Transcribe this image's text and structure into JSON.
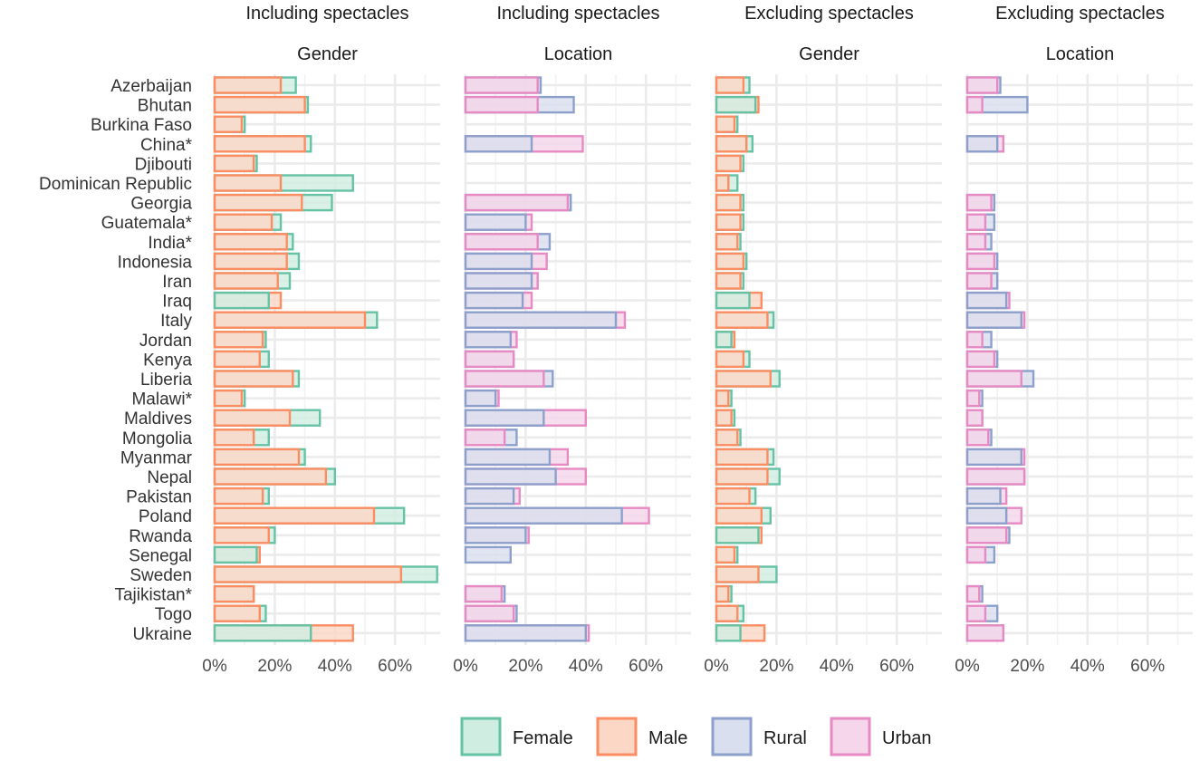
{
  "chart_data": {
    "type": "bar",
    "countries": [
      "Azerbaijan",
      "Bhutan",
      "Burkina Faso",
      "China*",
      "Djibouti",
      "Dominican Republic",
      "Georgia",
      "Guatemala*",
      "India*",
      "Indonesia",
      "Iran",
      "Iraq",
      "Italy",
      "Jordan",
      "Kenya",
      "Liberia",
      "Malawi*",
      "Maldives",
      "Mongolia",
      "Myanmar",
      "Nepal",
      "Pakistan",
      "Poland",
      "Rwanda",
      "Senegal",
      "Sweden",
      "Tajikistan*",
      "Togo",
      "Ukraine"
    ],
    "x_ticks": [
      "0%",
      "20%",
      "40%",
      "60%"
    ],
    "x_tick_values": [
      0,
      20,
      40,
      60
    ],
    "xlim": [
      0,
      75
    ],
    "legend": [
      {
        "key": "Female",
        "label": "Female",
        "stroke": "#66c2a5",
        "fill": "#cfede1"
      },
      {
        "key": "Male",
        "label": "Male",
        "stroke": "#fc8d62",
        "fill": "#fcd7c6"
      },
      {
        "key": "Rural",
        "label": "Rural",
        "stroke": "#8da0cb",
        "fill": "#d9dfee"
      },
      {
        "key": "Urban",
        "label": "Urban",
        "stroke": "#e78ac3",
        "fill": "#f5d6ea"
      }
    ],
    "panels": [
      {
        "title": "Including spectacles",
        "subtitle": "Gender",
        "series": [
          {
            "key": "Female",
            "values": [
              27,
              31,
              10,
              32,
              14,
              46,
              39,
              22,
              26,
              28,
              25,
              18,
              54,
              17,
              18,
              28,
              10,
              35,
              18,
              30,
              40,
              18,
              63,
              20,
              14,
              74,
              13,
              17,
              32
            ]
          },
          {
            "key": "Male",
            "values": [
              22,
              30,
              9,
              30,
              13,
              22,
              29,
              19,
              24,
              24,
              21,
              22,
              50,
              16,
              15,
              26,
              9,
              25,
              13,
              28,
              37,
              16,
              53,
              18,
              15,
              62,
              13,
              15,
              46
            ]
          }
        ]
      },
      {
        "title": "Including spectacles",
        "subtitle": "Location",
        "series": [
          {
            "key": "Rural",
            "values": [
              25,
              36,
              null,
              22,
              null,
              null,
              35,
              20,
              28,
              22,
              22,
              19,
              50,
              15,
              16,
              29,
              10,
              26,
              17,
              28,
              30,
              16,
              52,
              20,
              15,
              null,
              13,
              17,
              40
            ]
          },
          {
            "key": "Urban",
            "values": [
              24,
              24,
              null,
              39,
              null,
              null,
              34,
              22,
              24,
              27,
              24,
              22,
              53,
              17,
              16,
              26,
              11,
              40,
              13,
              34,
              40,
              18,
              61,
              21,
              null,
              null,
              12,
              16,
              41
            ]
          }
        ]
      },
      {
        "title": "Excluding spectacles",
        "subtitle": "Gender",
        "series": [
          {
            "key": "Female",
            "values": [
              11,
              13,
              7,
              12,
              9,
              7,
              9,
              9,
              8,
              10,
              9,
              11,
              19,
              5,
              11,
              21,
              5,
              6,
              8,
              19,
              21,
              13,
              18,
              14,
              7,
              20,
              5,
              9,
              8
            ]
          },
          {
            "key": "Male",
            "values": [
              9,
              14,
              6,
              10,
              8,
              4,
              8,
              8,
              7,
              9,
              8,
              15,
              17,
              6,
              9,
              18,
              4,
              5,
              7,
              17,
              17,
              11,
              15,
              15,
              6,
              14,
              4,
              7,
              16
            ]
          }
        ]
      },
      {
        "title": "Excluding spectacles",
        "subtitle": "Location",
        "series": [
          {
            "key": "Rural",
            "values": [
              11,
              20,
              null,
              10,
              null,
              null,
              9,
              9,
              8,
              10,
              10,
              13,
              18,
              8,
              10,
              22,
              5,
              5,
              8,
              18,
              19,
              11,
              13,
              14,
              9,
              null,
              5,
              10,
              12
            ]
          },
          {
            "key": "Urban",
            "values": [
              10,
              5,
              null,
              12,
              null,
              null,
              8,
              6,
              6,
              9,
              8,
              14,
              19,
              5,
              9,
              18,
              4,
              5,
              7,
              19,
              19,
              13,
              18,
              13,
              6,
              null,
              4,
              6,
              12
            ]
          }
        ]
      }
    ]
  }
}
